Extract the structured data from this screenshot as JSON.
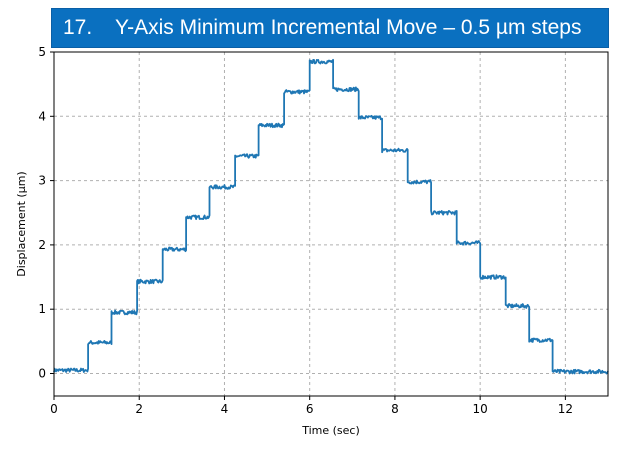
{
  "title": {
    "number": "17.",
    "text": "Y-Axis Minimum Incremental Move – 0.5 µm steps"
  },
  "colors": {
    "banner": "#0a70c0",
    "line": "#1f77b4",
    "grid": "#b0b0b0"
  },
  "chart_data": {
    "type": "line",
    "xlabel": "Time (sec)",
    "ylabel": "Displacement (µm)",
    "xlim": [
      0,
      13
    ],
    "ylim": [
      -0.35,
      5.0
    ],
    "xticks": [
      0,
      2,
      4,
      6,
      8,
      10,
      12
    ],
    "yticks": [
      0,
      1,
      2,
      3,
      4,
      5
    ],
    "grid": true,
    "series": [
      {
        "step_times": [
          0.0,
          0.8,
          1.35,
          1.95,
          2.55,
          3.1,
          3.65,
          4.25,
          4.8,
          5.4,
          6.0,
          6.55,
          7.15,
          7.7,
          8.3,
          8.85,
          9.45,
          10.0,
          10.6,
          11.15,
          11.7,
          13.0
        ],
        "step_levels": [
          0.05,
          0.48,
          0.95,
          1.43,
          1.93,
          2.43,
          2.9,
          3.38,
          3.86,
          4.38,
          4.85,
          4.42,
          3.98,
          3.47,
          2.98,
          2.5,
          2.03,
          1.5,
          1.05,
          0.52,
          0.03
        ]
      }
    ]
  }
}
